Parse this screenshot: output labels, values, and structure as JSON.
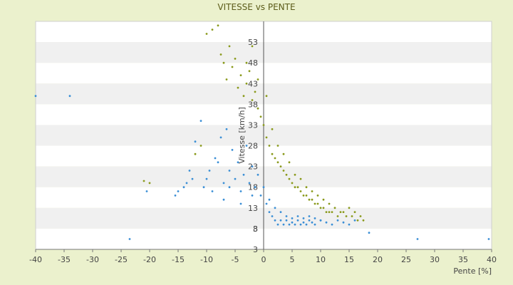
{
  "chart_data": {
    "type": "scatter",
    "title": "VITESSE vs PENTE",
    "xlabel": "Pente [%]",
    "ylabel": "Vitesse [km/h]",
    "xlim": [
      -40,
      40
    ],
    "ylim": [
      3,
      58
    ],
    "x_ticks": [
      "-40",
      "-35",
      "-30",
      "-25",
      "-20",
      "-15",
      "-10",
      "-5",
      "0",
      "5",
      "10",
      "15",
      "20",
      "25",
      "30",
      "35",
      "40"
    ],
    "y_ticks": [
      "3",
      "3",
      "8",
      "13",
      "18",
      "23",
      "28",
      "33",
      "38",
      "43",
      "48",
      "53"
    ],
    "grid": "horizontal bands",
    "legend": "none",
    "series_colors": {
      "blue": "#3b8fd6",
      "olive": "#8a9a1c"
    },
    "series": [
      {
        "color": "blue",
        "points": [
          [
            -40,
            40
          ],
          [
            -34,
            40
          ],
          [
            -23.5,
            5.5
          ],
          [
            -20.5,
            17
          ],
          [
            -15.5,
            16
          ],
          [
            -15,
            17
          ],
          [
            -14,
            18
          ],
          [
            -13.5,
            19
          ],
          [
            -13,
            22
          ],
          [
            -12.5,
            20
          ],
          [
            -12,
            29
          ],
          [
            -11,
            34
          ],
          [
            -10.5,
            18
          ],
          [
            -10,
            20
          ],
          [
            -9.5,
            22
          ],
          [
            -9,
            17
          ],
          [
            -8.5,
            25
          ],
          [
            -8,
            24
          ],
          [
            -7.5,
            30
          ],
          [
            -7,
            19
          ],
          [
            -6.5,
            32
          ],
          [
            -6,
            22
          ],
          [
            -5.5,
            27
          ],
          [
            -5,
            20
          ],
          [
            -4.5,
            24
          ],
          [
            -4,
            17
          ],
          [
            -3.5,
            21
          ],
          [
            -3,
            28
          ],
          [
            -2.5,
            19
          ],
          [
            -2,
            23
          ],
          [
            -1.5,
            18
          ],
          [
            -1,
            21
          ],
          [
            -0.5,
            16
          ],
          [
            0,
            18
          ],
          [
            0.5,
            14
          ],
          [
            1,
            12
          ],
          [
            1.5,
            11
          ],
          [
            2,
            10
          ],
          [
            2.5,
            9
          ],
          [
            3,
            10
          ],
          [
            3.5,
            9
          ],
          [
            4,
            10
          ],
          [
            4.5,
            9
          ],
          [
            5,
            9.5
          ],
          [
            5.5,
            9
          ],
          [
            6,
            10
          ],
          [
            6.5,
            9
          ],
          [
            7,
            9.5
          ],
          [
            7.5,
            9
          ],
          [
            8,
            10
          ],
          [
            8.5,
            9.5
          ],
          [
            9,
            9
          ],
          [
            10,
            10
          ],
          [
            11,
            9.5
          ],
          [
            12,
            9
          ],
          [
            13,
            10
          ],
          [
            14,
            9.5
          ],
          [
            15,
            9
          ],
          [
            16,
            10
          ],
          [
            18.5,
            7
          ],
          [
            27,
            5.5
          ],
          [
            39.5,
            5.5
          ],
          [
            -7,
            15
          ],
          [
            -6,
            18
          ],
          [
            -4,
            14
          ],
          [
            -2,
            16
          ],
          [
            1,
            15
          ],
          [
            2,
            13
          ],
          [
            3,
            12
          ],
          [
            4,
            11
          ],
          [
            5,
            10.5
          ],
          [
            6,
            11
          ],
          [
            7,
            10.5
          ],
          [
            8,
            11
          ],
          [
            9,
            10.5
          ],
          [
            10,
            10
          ]
        ]
      },
      {
        "color": "olive",
        "points": [
          [
            -21,
            19.5
          ],
          [
            -20,
            19
          ],
          [
            -12,
            26
          ],
          [
            -11,
            28
          ],
          [
            -10,
            55
          ],
          [
            -9,
            56
          ],
          [
            -8,
            57
          ],
          [
            -7.5,
            50
          ],
          [
            -7,
            48
          ],
          [
            -6.5,
            44
          ],
          [
            -6,
            52
          ],
          [
            -5.5,
            47
          ],
          [
            -5,
            49
          ],
          [
            -4.5,
            42
          ],
          [
            -4,
            45
          ],
          [
            -3.5,
            40
          ],
          [
            -3,
            43
          ],
          [
            -2.5,
            46
          ],
          [
            -2,
            39
          ],
          [
            -1.5,
            41
          ],
          [
            -1,
            37
          ],
          [
            -0.5,
            35
          ],
          [
            0,
            33
          ],
          [
            0.5,
            30
          ],
          [
            1,
            28
          ],
          [
            1.5,
            26
          ],
          [
            2,
            25
          ],
          [
            2.5,
            24
          ],
          [
            3,
            23
          ],
          [
            3.5,
            22
          ],
          [
            4,
            21
          ],
          [
            4.5,
            20
          ],
          [
            5,
            19
          ],
          [
            5.5,
            18
          ],
          [
            6,
            18
          ],
          [
            6.5,
            17
          ],
          [
            7,
            16
          ],
          [
            7.5,
            16
          ],
          [
            8,
            15
          ],
          [
            8.5,
            15
          ],
          [
            9,
            14
          ],
          [
            9.5,
            14
          ],
          [
            10,
            13
          ],
          [
            10.5,
            13
          ],
          [
            11,
            12
          ],
          [
            11.5,
            12
          ],
          [
            12,
            12
          ],
          [
            13,
            11
          ],
          [
            14,
            12
          ],
          [
            15,
            13
          ],
          [
            16,
            12
          ],
          [
            17,
            11
          ],
          [
            17.5,
            10
          ],
          [
            -3,
            48
          ],
          [
            -2,
            52
          ],
          [
            -1,
            44
          ],
          [
            0.5,
            40
          ],
          [
            1.5,
            32
          ],
          [
            2.5,
            28
          ],
          [
            3.5,
            26
          ],
          [
            4.5,
            24
          ],
          [
            5.5,
            21
          ],
          [
            6.5,
            20
          ],
          [
            7.5,
            18
          ],
          [
            8.5,
            17
          ],
          [
            9.5,
            16
          ],
          [
            10.5,
            15
          ],
          [
            11.5,
            14
          ],
          [
            12.5,
            13
          ],
          [
            13.5,
            12
          ],
          [
            14.5,
            11
          ],
          [
            15.5,
            11
          ],
          [
            16.5,
            10
          ]
        ]
      }
    ]
  }
}
